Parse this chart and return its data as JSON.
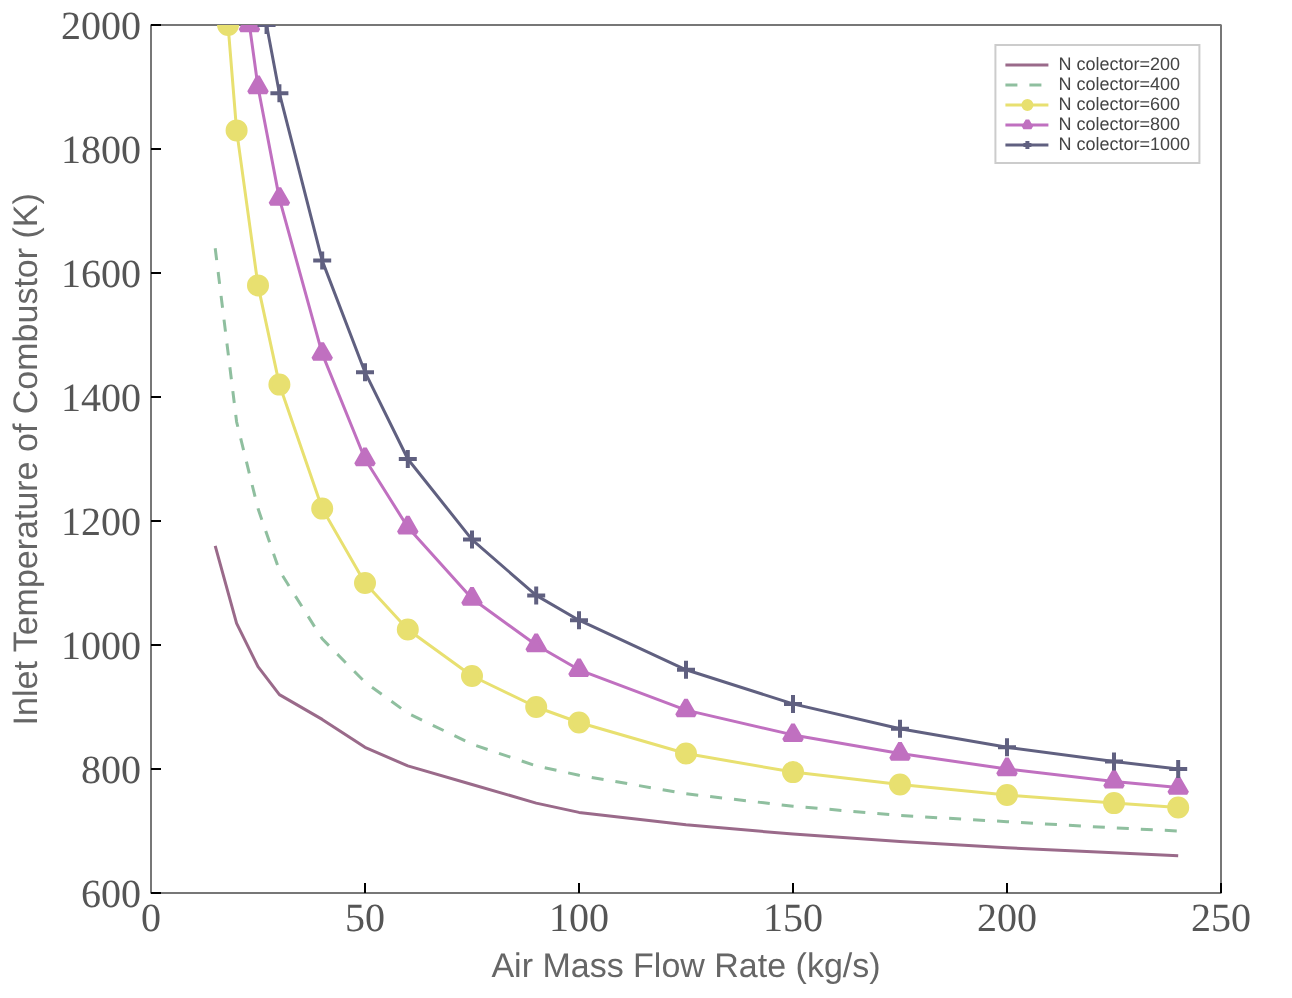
{
  "chart_data": {
    "type": "line",
    "xlabel": "Air Mass Flow Rate (kg/s)",
    "ylabel": "Inlet Temperature of Combustor (K)",
    "xlim": [
      0,
      250
    ],
    "ylim": [
      600,
      2000
    ],
    "xticks": [
      0,
      50,
      100,
      150,
      200,
      250
    ],
    "yticks": [
      600,
      800,
      1000,
      1200,
      1400,
      1600,
      1800,
      2000
    ],
    "grid": false,
    "legend": "top right",
    "series": [
      {
        "name": "N colector=200",
        "color": "#9a6a8a",
        "marker": "none",
        "line_style": "solid",
        "x": [
          15,
          20,
          25,
          30,
          40,
          50,
          60,
          75,
          90,
          100,
          125,
          150,
          175,
          200,
          225,
          240
        ],
        "values": [
          1160,
          1035,
          965,
          920,
          880,
          835,
          805,
          775,
          745,
          730,
          710,
          695,
          683,
          673,
          665,
          660
        ]
      },
      {
        "name": "N colector=400",
        "color": "#8fbf9f",
        "marker": "none",
        "line_style": "dashed",
        "x": [
          15,
          20,
          25,
          30,
          40,
          50,
          60,
          75,
          90,
          100,
          125,
          150,
          175,
          200,
          225,
          240
        ],
        "values": [
          1640,
          1360,
          1220,
          1120,
          1010,
          940,
          890,
          840,
          805,
          790,
          760,
          740,
          725,
          715,
          705,
          700
        ]
      },
      {
        "name": "N colector=600",
        "color": "#e8e070",
        "marker": "circle",
        "line_style": "solid",
        "x": [
          18,
          20,
          25,
          30,
          40,
          50,
          60,
          75,
          90,
          100,
          125,
          150,
          175,
          200,
          225,
          240
        ],
        "values": [
          2000,
          1830,
          1580,
          1420,
          1220,
          1100,
          1025,
          950,
          900,
          875,
          825,
          795,
          775,
          758,
          745,
          738
        ]
      },
      {
        "name": "N colector=800",
        "color": "#c070c0",
        "marker": "triangle",
        "line_style": "solid",
        "x": [
          23,
          25,
          30,
          40,
          50,
          60,
          75,
          90,
          100,
          125,
          150,
          175,
          200,
          225,
          240
        ],
        "values": [
          2000,
          1900,
          1720,
          1470,
          1300,
          1190,
          1075,
          1000,
          960,
          895,
          855,
          825,
          800,
          780,
          770
        ]
      },
      {
        "name": "N colector=1000",
        "color": "#606080",
        "marker": "cross",
        "line_style": "solid",
        "x": [
          27,
          30,
          40,
          50,
          60,
          75,
          90,
          100,
          125,
          150,
          175,
          200,
          225,
          240
        ],
        "values": [
          2000,
          1890,
          1620,
          1440,
          1300,
          1170,
          1080,
          1040,
          960,
          905,
          865,
          835,
          812,
          800
        ]
      }
    ]
  }
}
